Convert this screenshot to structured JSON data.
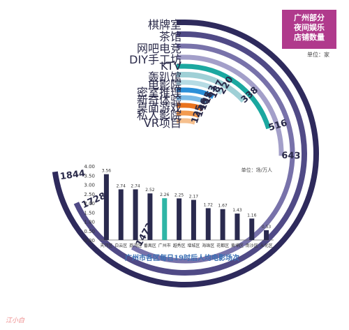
{
  "main_title_lines": [
    "广州部分",
    "夜间娱乐",
    "店铺数量"
  ],
  "main_unit": "单位：家",
  "signature": "江小白",
  "chart_data": [
    {
      "type": "radial-bar",
      "categories": [
        "棋牌室",
        "茶馆",
        "网吧电竞",
        "DIY手工坊",
        "KTV",
        "轰趴馆",
        "电影院",
        "密室推理",
        "新奇体验",
        "桌面游戏",
        "私人影院",
        "VR项目"
      ],
      "values": [
        1844,
        1728,
        1473,
        643,
        516,
        338,
        220,
        187,
        163,
        155,
        146,
        125
      ],
      "value_labels": [
        "1844",
        "1728",
        "1473",
        "643",
        "516",
        "338",
        "220",
        "187",
        "163",
        "155",
        "146",
        "125"
      ],
      "colors": [
        "#2e2a5c",
        "#504a86",
        "#7872aa",
        "#a39fc9",
        "#1ba8a0",
        "#9fd0d6",
        "#b6dbe4",
        "#2b8fd8",
        "#7bbbe6",
        "#e9731e",
        "#f39a4e",
        "#f6c08e"
      ],
      "title": "广州部分夜间娱乐店铺数量",
      "unit": "单位：家"
    },
    {
      "type": "bar",
      "title": "广州市各区每日19时后人均电影场次",
      "unit": "单位：场/万人",
      "categories": [
        "天河区",
        "白云区",
        "荔湾区",
        "番禺区",
        "广州市",
        "越秀区",
        "增城区",
        "海珠区",
        "花都区",
        "黄埔区",
        "南沙区",
        "从化区"
      ],
      "values": [
        3.56,
        2.74,
        2.74,
        2.52,
        2.26,
        2.25,
        2.17,
        1.72,
        1.67,
        1.43,
        1.16,
        0.53
      ],
      "value_labels": [
        "3.56",
        "2.74",
        "2.74",
        "2.52",
        "2.26",
        "2.25",
        "2.17",
        "1.72",
        "1.67",
        "1.43",
        "1.16",
        "0.53"
      ],
      "yticks": [
        "4.00",
        "3.50",
        "3.00",
        "2.50",
        "2.00",
        "1.50",
        "1.00",
        "0.50",
        "0.00"
      ],
      "ylim": [
        0,
        4
      ],
      "highlight_category": "广州市",
      "colors": {
        "bar": "#2a2a4e",
        "highlight": "#2fb5a6",
        "title": "#3a6fb4"
      }
    }
  ]
}
